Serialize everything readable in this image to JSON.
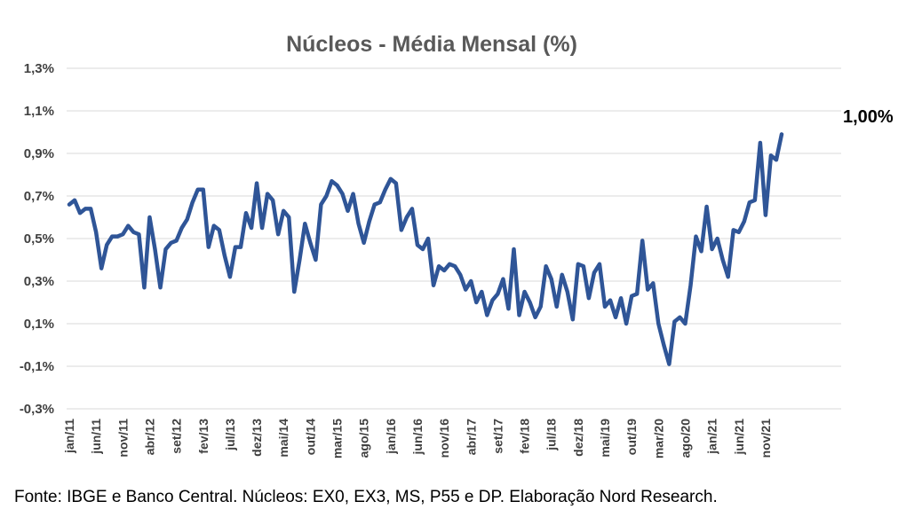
{
  "chart_data": {
    "type": "line",
    "title": "Núcleos - Média Mensal (%)",
    "xlabel": "",
    "ylabel": "",
    "ylim": [
      -0.3,
      1.3
    ],
    "yticks": [
      -0.3,
      -0.1,
      0.1,
      0.3,
      0.5,
      0.7,
      0.9,
      1.1,
      1.3
    ],
    "ytick_labels": [
      "-0,3%",
      "-0,1%",
      "0,1%",
      "0,3%",
      "0,5%",
      "0,7%",
      "0,9%",
      "1,1%",
      "1,3%"
    ],
    "x_start": "2011-01",
    "x_tick_labels": [
      "jan/11",
      "jun/11",
      "nov/11",
      "abr/12",
      "set/12",
      "fev/13",
      "jul/13",
      "dez/13",
      "mai/14",
      "out/14",
      "mar/15",
      "ago/15",
      "jan/16",
      "jun/16",
      "nov/16",
      "abr/17",
      "set/17",
      "fev/18",
      "jul/18",
      "dez/18",
      "mai/19",
      "out/19",
      "mar/20",
      "ago/20",
      "jan/21",
      "jun/21",
      "nov/21"
    ],
    "grid": true,
    "legend": "none",
    "series": [
      {
        "color": "#2f5597",
        "values": [
          0.66,
          0.68,
          0.62,
          0.64,
          0.64,
          0.53,
          0.36,
          0.47,
          0.51,
          0.51,
          0.52,
          0.56,
          0.53,
          0.52,
          0.27,
          0.6,
          0.45,
          0.27,
          0.45,
          0.48,
          0.49,
          0.55,
          0.59,
          0.67,
          0.73,
          0.73,
          0.46,
          0.56,
          0.54,
          0.42,
          0.32,
          0.46,
          0.46,
          0.62,
          0.55,
          0.76,
          0.55,
          0.71,
          0.68,
          0.52,
          0.63,
          0.6,
          0.25,
          0.4,
          0.57,
          0.48,
          0.4,
          0.66,
          0.7,
          0.77,
          0.75,
          0.71,
          0.63,
          0.71,
          0.57,
          0.48,
          0.58,
          0.66,
          0.67,
          0.73,
          0.78,
          0.76,
          0.54,
          0.6,
          0.64,
          0.47,
          0.45,
          0.5,
          0.28,
          0.37,
          0.35,
          0.38,
          0.37,
          0.33,
          0.26,
          0.3,
          0.2,
          0.25,
          0.14,
          0.21,
          0.24,
          0.31,
          0.17,
          0.45,
          0.14,
          0.25,
          0.2,
          0.13,
          0.18,
          0.37,
          0.31,
          0.18,
          0.33,
          0.25,
          0.12,
          0.38,
          0.37,
          0.22,
          0.34,
          0.38,
          0.18,
          0.21,
          0.13,
          0.22,
          0.1,
          0.23,
          0.24,
          0.49,
          0.26,
          0.29,
          0.1,
          0.0,
          -0.09,
          0.11,
          0.13,
          0.1,
          0.28,
          0.51,
          0.44,
          0.65,
          0.45,
          0.5,
          0.4,
          0.32,
          0.54,
          0.53,
          0.58,
          0.67,
          0.68,
          0.95,
          0.61,
          0.89,
          0.87,
          0.99
        ]
      }
    ],
    "annotation": "1,00%"
  },
  "source": "Fonte: IBGE e Banco Central. Núcleos: EX0, EX3, MS, P55 e DP. Elaboração Nord Research."
}
